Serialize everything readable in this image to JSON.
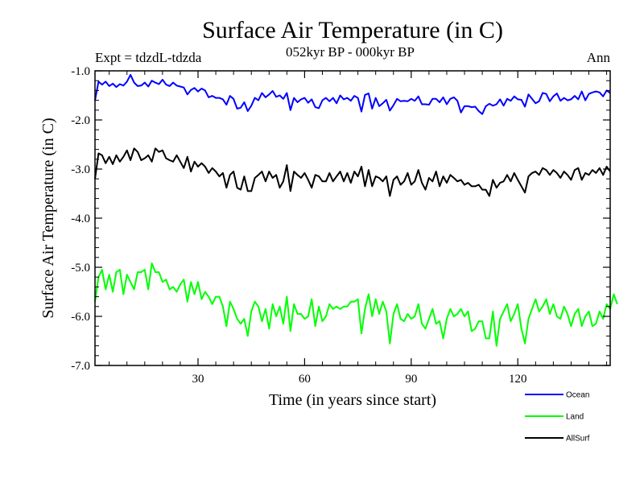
{
  "chart_data": {
    "type": "line",
    "title": "Surface Air Temperature (in C)",
    "subtitle": "052kyr BP - 000kyr BP",
    "left_label": "Expt = tdzdL-tdzda",
    "right_label": "Ann",
    "xlabel": "Time (in years since start)",
    "ylabel": "Surface Air Temperature (in C)",
    "xlim": [
      1,
      146
    ],
    "ylim": [
      -7.0,
      -1.0
    ],
    "xticks": [
      30,
      60,
      90,
      120
    ],
    "xtick_labels": [
      "30",
      "60",
      "90",
      "120"
    ],
    "yticks": [
      -1.0,
      -2.0,
      -3.0,
      -4.0,
      -5.0,
      -6.0,
      -7.0
    ],
    "ytick_labels": [
      "-1.0",
      "-2.0",
      "-3.0",
      "-4.0",
      "-5.0",
      "-6.0",
      "-7.0"
    ],
    "legend_position": "bottom-right, below plot",
    "x_start": 1,
    "series": [
      {
        "name": "Ocean",
        "color": "#0000ff",
        "values": [
          -1.6,
          -1.22,
          -1.28,
          -1.22,
          -1.31,
          -1.26,
          -1.33,
          -1.27,
          -1.3,
          -1.22,
          -1.08,
          -1.24,
          -1.31,
          -1.3,
          -1.24,
          -1.32,
          -1.2,
          -1.24,
          -1.27,
          -1.18,
          -1.28,
          -1.31,
          -1.24,
          -1.3,
          -1.32,
          -1.34,
          -1.48,
          -1.39,
          -1.35,
          -1.42,
          -1.36,
          -1.4,
          -1.54,
          -1.51,
          -1.55,
          -1.55,
          -1.58,
          -1.69,
          -1.51,
          -1.57,
          -1.77,
          -1.75,
          -1.64,
          -1.82,
          -1.71,
          -1.55,
          -1.6,
          -1.45,
          -1.54,
          -1.48,
          -1.41,
          -1.53,
          -1.5,
          -1.57,
          -1.45,
          -1.8,
          -1.55,
          -1.64,
          -1.58,
          -1.55,
          -1.65,
          -1.58,
          -1.74,
          -1.76,
          -1.6,
          -1.55,
          -1.62,
          -1.55,
          -1.66,
          -1.5,
          -1.58,
          -1.55,
          -1.61,
          -1.51,
          -1.55,
          -1.83,
          -1.49,
          -1.46,
          -1.77,
          -1.55,
          -1.72,
          -1.66,
          -1.59,
          -1.81,
          -1.7,
          -1.57,
          -1.62,
          -1.61,
          -1.62,
          -1.57,
          -1.61,
          -1.52,
          -1.68,
          -1.68,
          -1.69,
          -1.57,
          -1.57,
          -1.64,
          -1.54,
          -1.68,
          -1.57,
          -1.54,
          -1.61,
          -1.85,
          -1.72,
          -1.72,
          -1.74,
          -1.73,
          -1.82,
          -1.88,
          -1.72,
          -1.67,
          -1.71,
          -1.68,
          -1.58,
          -1.71,
          -1.57,
          -1.61,
          -1.52,
          -1.58,
          -1.59,
          -1.73,
          -1.48,
          -1.57,
          -1.66,
          -1.62,
          -1.45,
          -1.47,
          -1.62,
          -1.52,
          -1.46,
          -1.61,
          -1.55,
          -1.6,
          -1.58,
          -1.51,
          -1.58,
          -1.42,
          -1.6,
          -1.47,
          -1.44,
          -1.42,
          -1.44,
          -1.52,
          -1.4,
          -1.45
        ]
      },
      {
        "name": "Land",
        "color": "#00ff00",
        "values": [
          -5.7,
          -5.2,
          -5.05,
          -5.45,
          -5.15,
          -5.5,
          -5.1,
          -5.05,
          -5.55,
          -5.15,
          -5.3,
          -5.45,
          -5.1,
          -5.1,
          -5.05,
          -5.45,
          -4.92,
          -5.1,
          -5.1,
          -5.3,
          -5.25,
          -5.45,
          -5.4,
          -5.5,
          -5.35,
          -5.25,
          -5.7,
          -5.3,
          -5.55,
          -5.3,
          -5.65,
          -5.5,
          -5.6,
          -5.75,
          -5.6,
          -5.6,
          -5.8,
          -6.2,
          -5.7,
          -5.85,
          -6.05,
          -6.15,
          -6.05,
          -6.4,
          -5.9,
          -5.7,
          -5.8,
          -6.1,
          -5.85,
          -6.25,
          -5.75,
          -6.0,
          -5.8,
          -6.15,
          -5.6,
          -6.3,
          -5.75,
          -5.95,
          -5.95,
          -6.05,
          -6.0,
          -5.65,
          -6.2,
          -5.8,
          -6.1,
          -6.0,
          -5.75,
          -5.85,
          -5.8,
          -5.85,
          -5.8,
          -5.8,
          -5.7,
          -5.7,
          -5.65,
          -6.35,
          -5.85,
          -5.55,
          -6.0,
          -5.65,
          -5.95,
          -5.7,
          -5.9,
          -6.55,
          -5.95,
          -5.75,
          -6.05,
          -6.1,
          -5.95,
          -6.05,
          -6.0,
          -5.75,
          -6.15,
          -6.25,
          -6.05,
          -5.85,
          -6.15,
          -6.1,
          -6.45,
          -6.05,
          -5.85,
          -6.0,
          -5.95,
          -5.85,
          -6.0,
          -5.9,
          -6.3,
          -6.25,
          -6.1,
          -6.1,
          -6.45,
          -6.45,
          -5.9,
          -6.6,
          -6.05,
          -5.9,
          -5.75,
          -6.1,
          -5.95,
          -5.75,
          -6.25,
          -6.55,
          -6.05,
          -5.85,
          -5.65,
          -5.9,
          -5.8,
          -5.65,
          -5.95,
          -5.75,
          -6.0,
          -6.05,
          -5.8,
          -5.95,
          -6.2,
          -5.95,
          -5.85,
          -6.2,
          -6.0,
          -5.9,
          -6.2,
          -6.15,
          -5.9,
          -6.05,
          -5.75,
          -5.85,
          -5.55,
          -5.75
        ]
      },
      {
        "name": "AllSurf",
        "color": "#000000",
        "values": [
          -3.2,
          -2.68,
          -2.72,
          -2.88,
          -2.75,
          -2.9,
          -2.72,
          -2.85,
          -2.75,
          -2.62,
          -2.82,
          -2.58,
          -2.65,
          -2.82,
          -2.78,
          -2.72,
          -2.85,
          -2.58,
          -2.65,
          -2.62,
          -2.78,
          -2.82,
          -2.85,
          -2.72,
          -2.85,
          -2.98,
          -2.75,
          -3.05,
          -2.85,
          -2.95,
          -2.88,
          -2.95,
          -3.08,
          -2.98,
          -3.05,
          -3.15,
          -3.08,
          -3.38,
          -3.12,
          -3.05,
          -3.38,
          -3.42,
          -3.15,
          -3.45,
          -3.45,
          -3.18,
          -3.12,
          -3.05,
          -3.25,
          -3.05,
          -3.18,
          -3.12,
          -3.38,
          -3.25,
          -2.92,
          -3.45,
          -3.05,
          -3.12,
          -3.18,
          -3.08,
          -3.22,
          -3.38,
          -3.12,
          -3.15,
          -3.25,
          -3.25,
          -3.08,
          -3.25,
          -3.15,
          -3.05,
          -3.25,
          -3.08,
          -3.28,
          -3.05,
          -3.15,
          -2.95,
          -3.35,
          -3.02,
          -3.35,
          -3.15,
          -3.18,
          -3.25,
          -3.15,
          -3.55,
          -3.22,
          -3.15,
          -3.32,
          -3.25,
          -3.08,
          -3.32,
          -3.25,
          -3.02,
          -3.28,
          -3.42,
          -3.18,
          -3.25,
          -3.05,
          -3.35,
          -3.15,
          -3.28,
          -3.12,
          -3.18,
          -3.25,
          -3.22,
          -3.32,
          -3.28,
          -3.35,
          -3.35,
          -3.32,
          -3.42,
          -3.42,
          -3.55,
          -3.22,
          -3.38,
          -3.28,
          -3.25,
          -3.12,
          -3.25,
          -3.08,
          -3.22,
          -3.35,
          -3.48,
          -3.15,
          -3.08,
          -3.05,
          -3.12,
          -2.98,
          -3.02,
          -3.12,
          -3.02,
          -3.08,
          -3.18,
          -3.05,
          -3.12,
          -3.22,
          -3.02,
          -2.98,
          -3.22,
          -3.08,
          -3.12,
          -3.02,
          -3.08,
          -2.98,
          -3.12,
          -2.95,
          -3.05
        ]
      }
    ]
  }
}
